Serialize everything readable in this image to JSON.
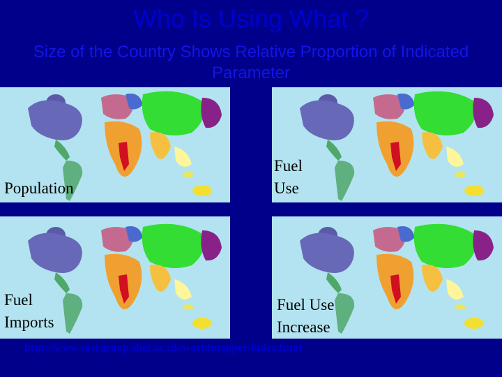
{
  "header": {
    "title": "Who Is Using What ?",
    "subtitle": "Size of the Country Shows Relative Proportion of Indicated Parameter"
  },
  "maps": [
    {
      "label": "Population"
    },
    {
      "label": "Fuel Use"
    },
    {
      "label": "Fuel Imports"
    },
    {
      "label": "Fuel Use Increase"
    }
  ],
  "footer": {
    "url": "http://www.sasi.group.shef.ac.uk/worldmapper/index.html"
  }
}
